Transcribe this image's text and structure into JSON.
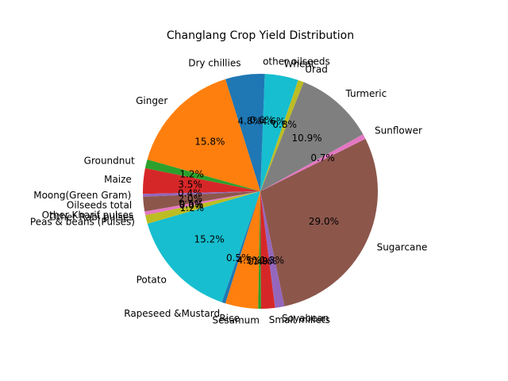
{
  "chart_data": {
    "type": "pie",
    "title": "Changlang Crop Yield Distribution",
    "start_angle_deg": 90,
    "direction": "counterclockwise",
    "slices": [
      {
        "label": "Dry chillies",
        "value": 4.8,
        "pct_label": "4.8%",
        "color": "#1f77b4"
      },
      {
        "label": "Ginger",
        "value": 15.8,
        "pct_label": "15.8%",
        "color": "#ff7f0e"
      },
      {
        "label": "Groundnut",
        "value": 1.2,
        "pct_label": "1.2%",
        "color": "#2ca02c"
      },
      {
        "label": "Maize",
        "value": 3.5,
        "pct_label": "3.5%",
        "color": "#d62728"
      },
      {
        "label": "Moong(Green Gram)",
        "value": 0.4,
        "pct_label": "0.4%",
        "color": "#9467bd"
      },
      {
        "label": "Oilseeds total",
        "value": 2.0,
        "pct_label": "2.0%",
        "color": "#8c564b"
      },
      {
        "label": "Other Kharif pulses",
        "value": 0.5,
        "pct_label": "0.5%",
        "color": "#e377c2"
      },
      {
        "label": "Other Rabi pulses",
        "value": 0.0,
        "pct_label": "0.0%",
        "color": "#7f7f7f"
      },
      {
        "label": "Peas & beans (Pulses)",
        "value": 1.2,
        "pct_label": "1.2%",
        "color": "#bcbd22"
      },
      {
        "label": "Potato",
        "value": 15.2,
        "pct_label": "15.2%",
        "color": "#17becf"
      },
      {
        "label": "Rapeseed &Mustard",
        "value": 0.5,
        "pct_label": "0.5%",
        "color": "#1f77b4"
      },
      {
        "label": "Rice",
        "value": 4.5,
        "pct_label": "4.5%",
        "color": "#ff7f0e"
      },
      {
        "label": "Sesamum",
        "value": 0.4,
        "pct_label": "0.4%",
        "color": "#2ca02c"
      },
      {
        "label": "Small millets",
        "value": 1.9,
        "pct_label": "1.9%",
        "color": "#d62728"
      },
      {
        "label": "Soyabean",
        "value": 1.3,
        "pct_label": "1.3%",
        "color": "#9467bd"
      },
      {
        "label": "Sugarcane",
        "value": 29.0,
        "pct_label": "29.0%",
        "color": "#8c564b"
      },
      {
        "label": "Sunflower",
        "value": 0.7,
        "pct_label": "0.7%",
        "color": "#e377c2"
      },
      {
        "label": "Turmeric",
        "value": 10.9,
        "pct_label": "10.9%",
        "color": "#7f7f7f"
      },
      {
        "label": "Urad",
        "value": 0.8,
        "pct_label": "0.8%",
        "color": "#bcbd22"
      },
      {
        "label": "Wheat",
        "value": 4.6,
        "pct_label": "4.6%",
        "color": "#17becf"
      },
      {
        "label": "other oilseeds",
        "value": 0.6,
        "pct_label": "0.6%",
        "color": "#1f77b4"
      }
    ]
  }
}
